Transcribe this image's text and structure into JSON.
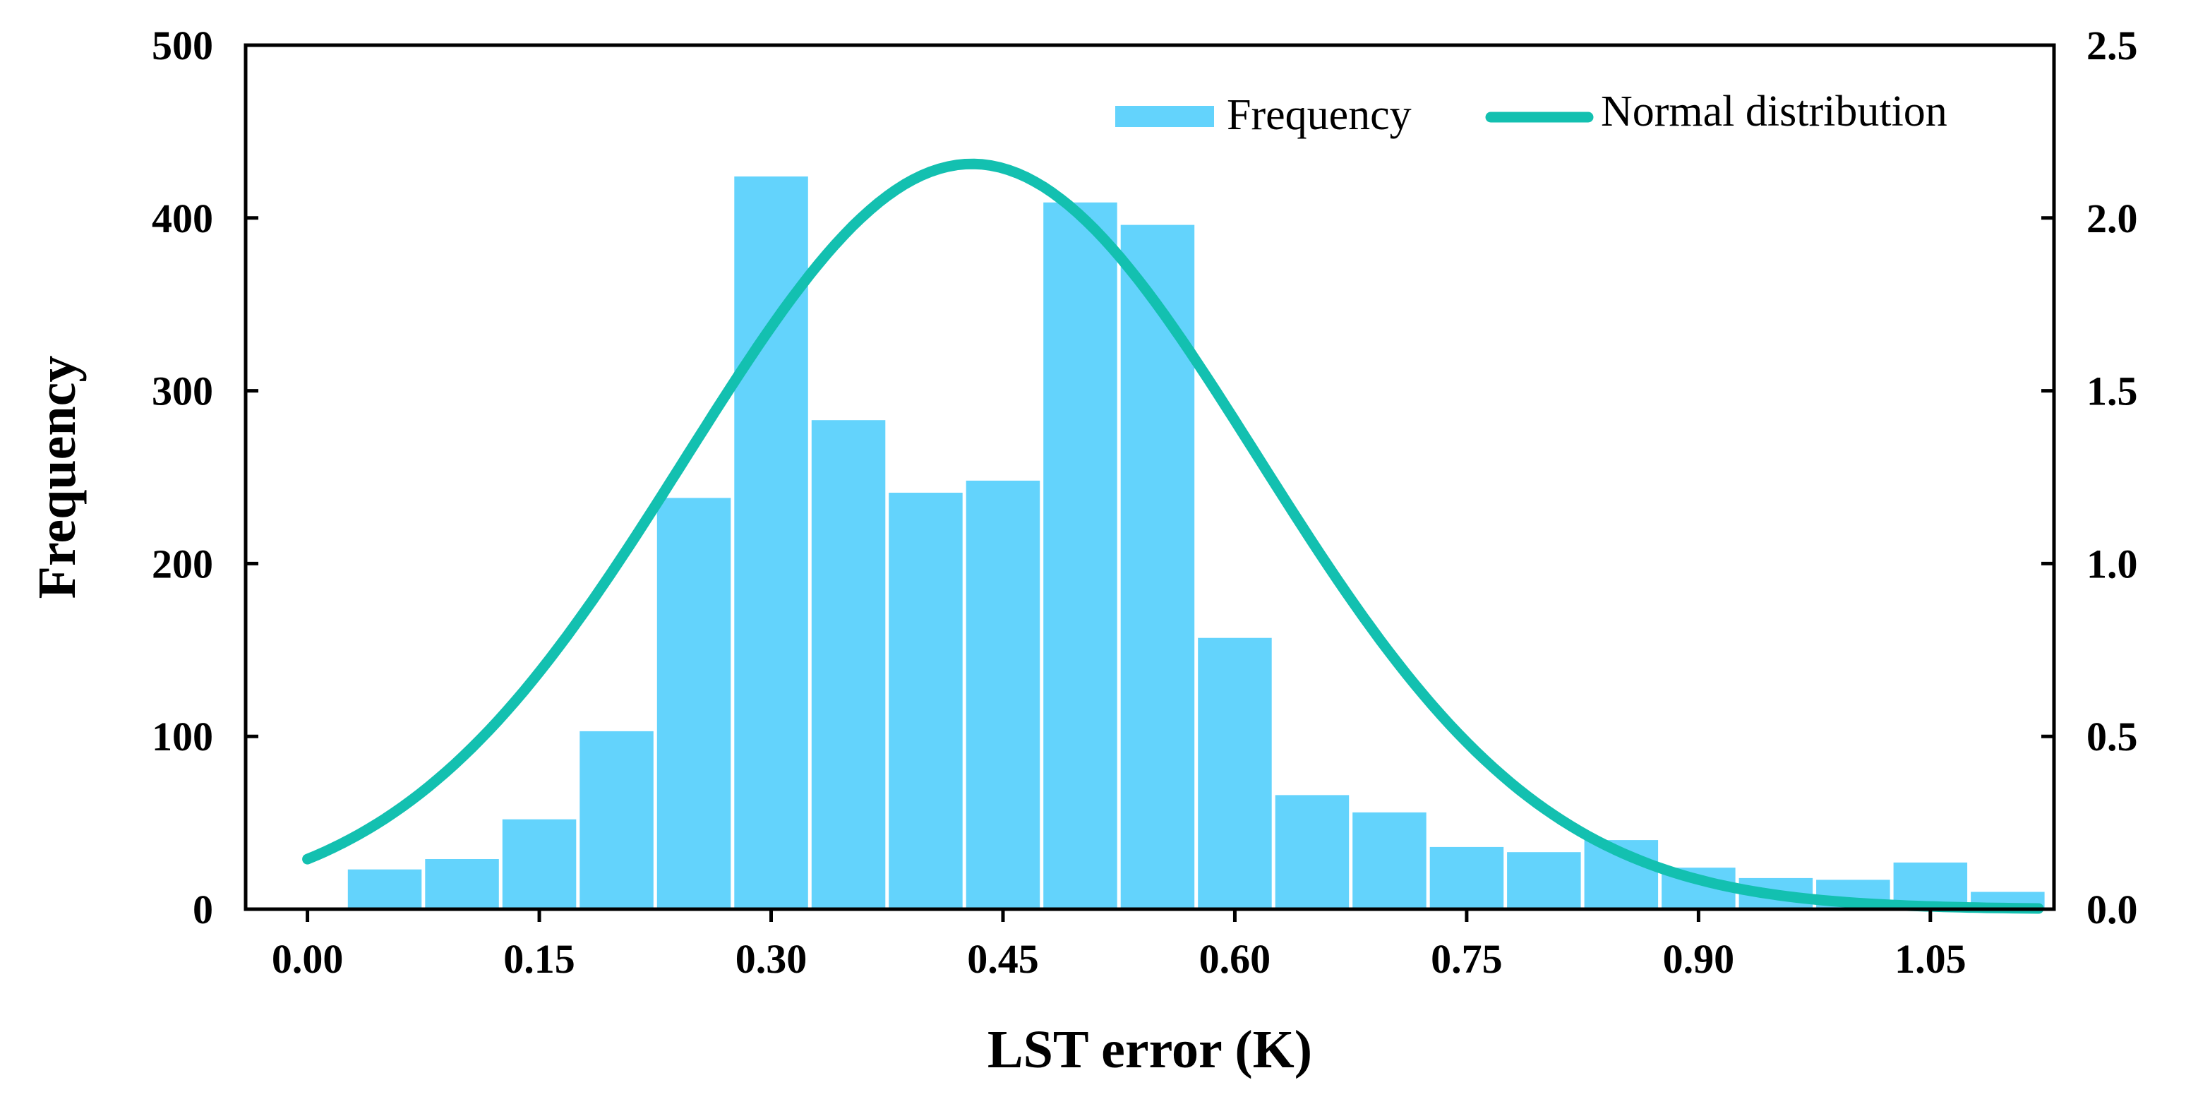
{
  "chart_data": {
    "type": "bar",
    "title": "",
    "xlabel": "LST error (K)",
    "ylabel": "Frequency",
    "y2label": "",
    "xlim": [
      -0.04,
      1.13
    ],
    "ylim": [
      0,
      500
    ],
    "y2lim": [
      0,
      2.5
    ],
    "x_ticks": [
      0.0,
      0.15,
      0.3,
      0.45,
      0.6,
      0.75,
      0.9,
      1.05
    ],
    "x_tick_labels": [
      "0.00",
      "0.15",
      "0.30",
      "0.45",
      "0.60",
      "0.75",
      "0.90",
      "1.05"
    ],
    "y_ticks": [
      0,
      100,
      200,
      300,
      400,
      500
    ],
    "y_tick_labels": [
      "0",
      "100",
      "200",
      "300",
      "400",
      "500"
    ],
    "y2_ticks": [
      0.0,
      0.5,
      1.0,
      1.5,
      2.0,
      2.5
    ],
    "y2_tick_labels": [
      "0.0",
      "0.5",
      "1.0",
      "1.5",
      "2.0",
      "2.5"
    ],
    "grid": false,
    "legend_position": "top-right",
    "series": [
      {
        "name": "Frequency",
        "type": "bar",
        "axis": "left",
        "color": "#63d3fc",
        "bin_width": 0.05,
        "bin_centers": [
          0.05,
          0.1,
          0.15,
          0.2,
          0.25,
          0.3,
          0.35,
          0.4,
          0.45,
          0.5,
          0.55,
          0.6,
          0.65,
          0.7,
          0.75,
          0.8,
          0.85,
          0.9,
          0.95,
          1.0,
          1.05,
          1.1
        ],
        "values": [
          23,
          29,
          52,
          103,
          238,
          424,
          283,
          241,
          248,
          409,
          396,
          157,
          66,
          56,
          36,
          33,
          40,
          24,
          18,
          17,
          27,
          10
        ]
      },
      {
        "name": "Normal distribution",
        "type": "line",
        "axis": "right",
        "color": "#13c0b0",
        "mean": 0.43,
        "std": 0.185,
        "x_range": [
          0.0,
          1.12
        ]
      }
    ]
  }
}
